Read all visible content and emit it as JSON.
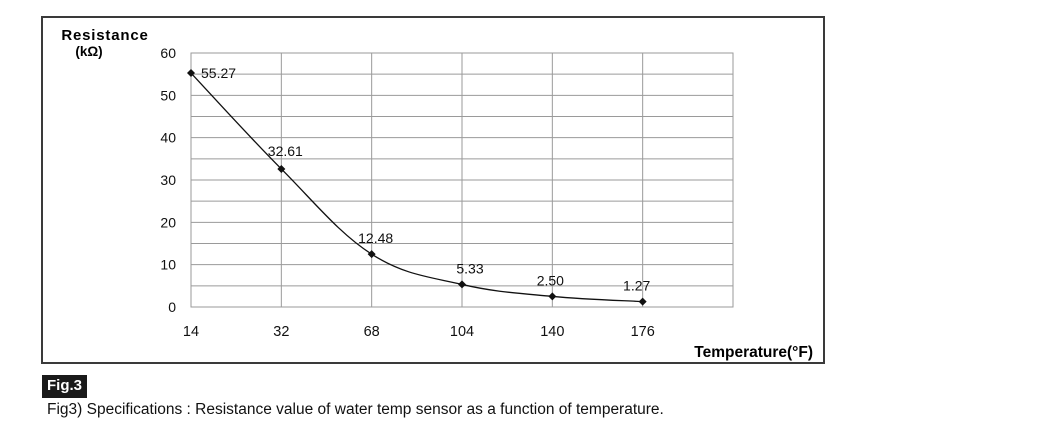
{
  "chart_data": {
    "type": "line",
    "ylabel_line1": "Resistance",
    "ylabel_line2": "(kΩ)",
    "xlabel": "Temperature(°F)",
    "categories": [
      "14",
      "32",
      "68",
      "104",
      "140",
      "176"
    ],
    "values": [
      55.27,
      32.61,
      12.48,
      5.33,
      2.5,
      1.27
    ],
    "value_labels": [
      "55.27",
      "32.61",
      "12.48",
      "5.33",
      "2.50",
      "1.27"
    ],
    "yticks": [
      "0",
      "10",
      "20",
      "30",
      "40",
      "50",
      "60"
    ],
    "ylim": [
      0,
      60
    ],
    "grid": true,
    "colors": {
      "line": "#111111",
      "grid": "#9a9a9a",
      "marker": "#111111"
    }
  },
  "figure": {
    "tag": "Fig.3",
    "caption": "Fig3) Specifications : Resistance value of water temp sensor as a function of temperature."
  }
}
